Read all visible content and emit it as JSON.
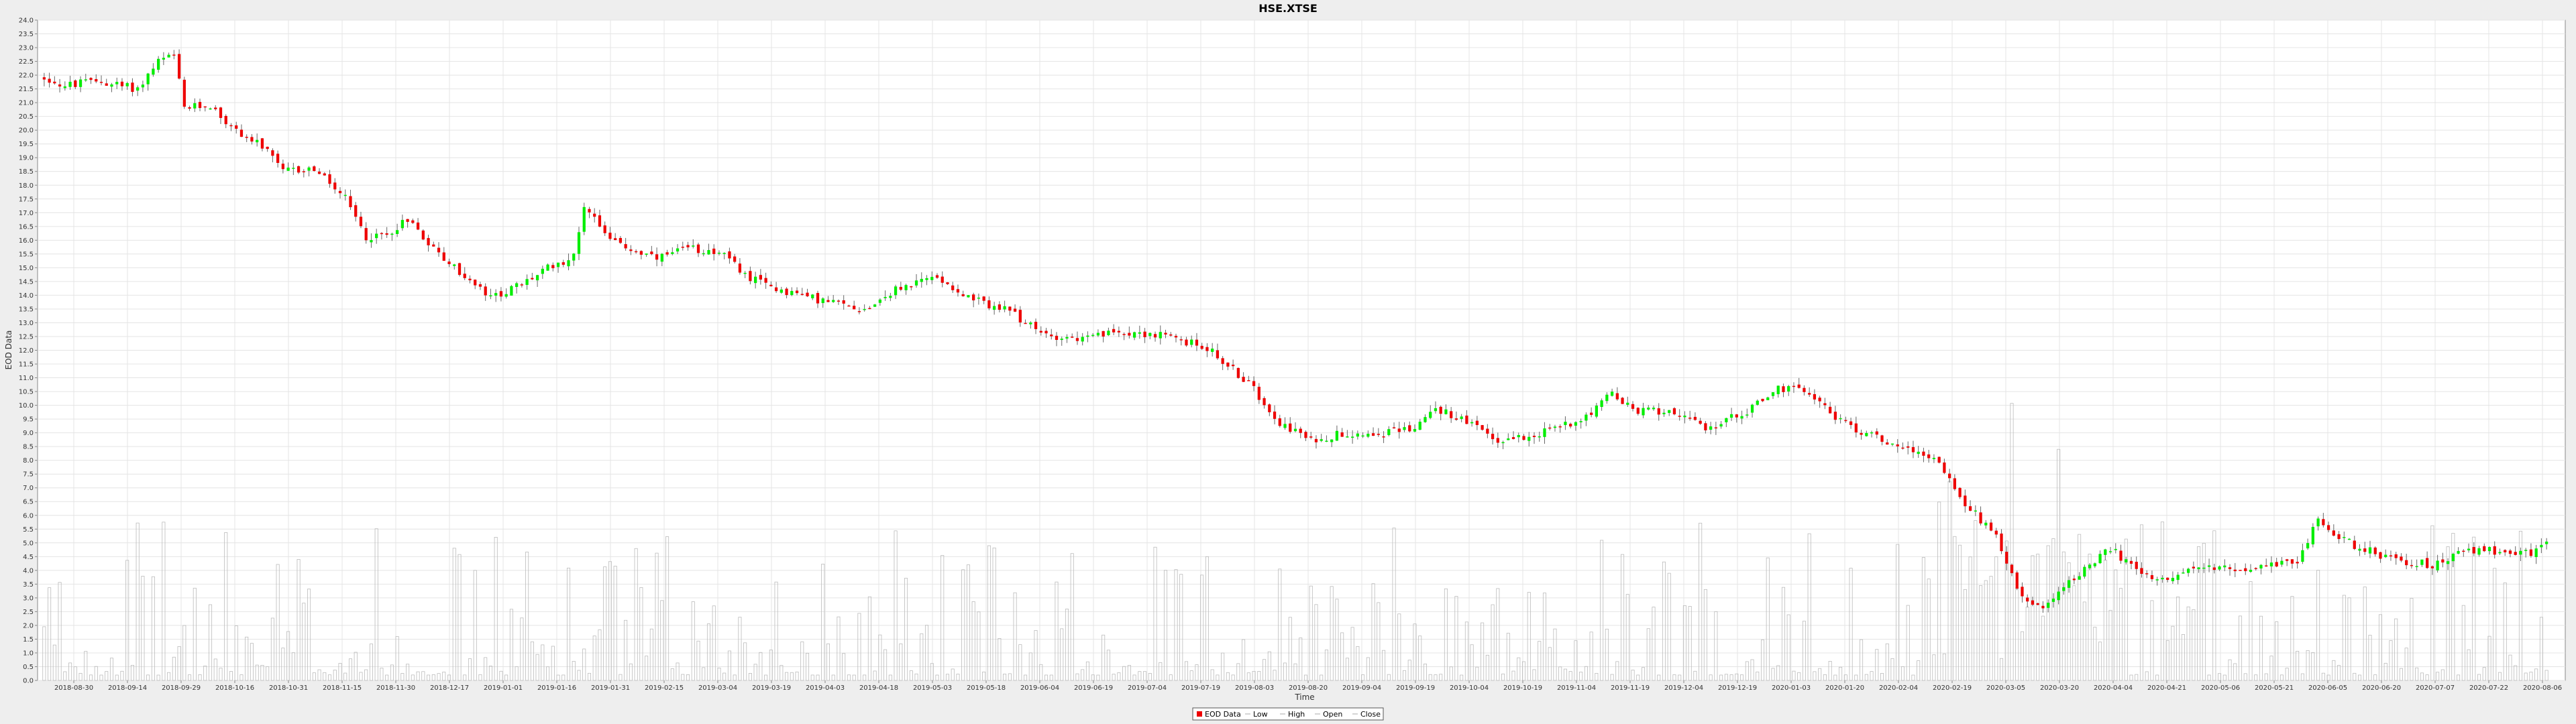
{
  "chart_data": {
    "type": "candlestick",
    "title": "HSE.XTSE",
    "xlabel": "Time",
    "ylabel": "EOD Data",
    "ylim": [
      0,
      24
    ],
    "ytick_step": 0.5,
    "grid": true,
    "legend_placement": "bottom-center",
    "x_tick_labels": [
      "2018-08-30",
      "2018-09-14",
      "2018-09-29",
      "2018-10-16",
      "2018-10-31",
      "2018-11-15",
      "2018-11-30",
      "2018-12-17",
      "2019-01-01",
      "2019-01-16",
      "2019-01-31",
      "2019-02-15",
      "2019-03-04",
      "2019-03-19",
      "2019-04-03",
      "2019-04-18",
      "2019-05-03",
      "2019-05-18",
      "2019-06-04",
      "2019-06-19",
      "2019-07-04",
      "2019-07-19",
      "2019-08-03",
      "2019-08-20",
      "2019-09-04",
      "2019-09-19",
      "2019-10-04",
      "2019-10-19",
      "2019-11-04",
      "2019-11-19",
      "2019-12-04",
      "2019-12-19",
      "2020-01-03",
      "2020-01-20",
      "2020-02-04",
      "2020-02-19",
      "2020-03-05",
      "2020-03-20",
      "2020-04-04",
      "2020-04-21",
      "2020-05-06",
      "2020-05-21",
      "2020-06-05",
      "2020-06-20",
      "2020-07-07",
      "2020-07-22",
      "2020-08-06"
    ],
    "legend": [
      "EOD Data",
      "Low",
      "High",
      "Open",
      "Close"
    ],
    "colors": {
      "up": "#00ee00",
      "down": "#ee0000",
      "wick": "#666666",
      "volume": "#bbbbbb",
      "grid": "#e4e4e4",
      "plot_bg": "#ffffff",
      "page_bg": "#eeeeee"
    },
    "trend_anchors": [
      [
        0,
        21.9
      ],
      [
        4,
        21.6
      ],
      [
        10,
        21.8
      ],
      [
        18,
        21.5
      ],
      [
        22,
        22.5
      ],
      [
        25,
        22.7
      ],
      [
        27,
        20.8
      ],
      [
        32,
        20.9
      ],
      [
        36,
        20.1
      ],
      [
        42,
        19.4
      ],
      [
        46,
        18.5
      ],
      [
        52,
        18.6
      ],
      [
        58,
        17.5
      ],
      [
        62,
        16.1
      ],
      [
        66,
        16.2
      ],
      [
        70,
        16.8
      ],
      [
        76,
        15.5
      ],
      [
        82,
        14.5
      ],
      [
        86,
        13.9
      ],
      [
        92,
        14.4
      ],
      [
        98,
        15.1
      ],
      [
        102,
        15.4
      ],
      [
        104,
        17.3
      ],
      [
        110,
        15.9
      ],
      [
        118,
        15.3
      ],
      [
        124,
        15.7
      ],
      [
        130,
        15.6
      ],
      [
        136,
        14.6
      ],
      [
        142,
        14.2
      ],
      [
        150,
        13.8
      ],
      [
        158,
        13.5
      ],
      [
        164,
        14.2
      ],
      [
        172,
        14.7
      ],
      [
        178,
        13.9
      ],
      [
        186,
        13.4
      ],
      [
        192,
        12.6
      ],
      [
        200,
        12.4
      ],
      [
        208,
        12.7
      ],
      [
        216,
        12.5
      ],
      [
        224,
        12.1
      ],
      [
        232,
        10.8
      ],
      [
        238,
        9.4
      ],
      [
        244,
        8.7
      ],
      [
        250,
        9.0
      ],
      [
        258,
        9.0
      ],
      [
        264,
        9.2
      ],
      [
        268,
        9.9
      ],
      [
        274,
        9.4
      ],
      [
        280,
        8.7
      ],
      [
        288,
        9.0
      ],
      [
        296,
        9.5
      ],
      [
        302,
        10.4
      ],
      [
        306,
        9.8
      ],
      [
        314,
        9.8
      ],
      [
        320,
        9.1
      ],
      [
        328,
        9.8
      ],
      [
        334,
        10.6
      ],
      [
        340,
        10.5
      ],
      [
        346,
        9.4
      ],
      [
        352,
        8.9
      ],
      [
        358,
        8.5
      ],
      [
        364,
        8.1
      ],
      [
        370,
        6.4
      ],
      [
        376,
        5.3
      ],
      [
        380,
        3.4
      ],
      [
        384,
        2.6
      ],
      [
        392,
        3.9
      ],
      [
        398,
        4.8
      ],
      [
        404,
        3.8
      ],
      [
        410,
        3.8
      ],
      [
        416,
        4.1
      ],
      [
        422,
        4.1
      ],
      [
        428,
        4.1
      ],
      [
        434,
        4.4
      ],
      [
        438,
        5.8
      ],
      [
        444,
        5.0
      ],
      [
        452,
        4.4
      ],
      [
        460,
        4.2
      ],
      [
        466,
        4.7
      ],
      [
        472,
        4.7
      ],
      [
        478,
        4.6
      ],
      [
        482,
        4.9
      ]
    ]
  }
}
